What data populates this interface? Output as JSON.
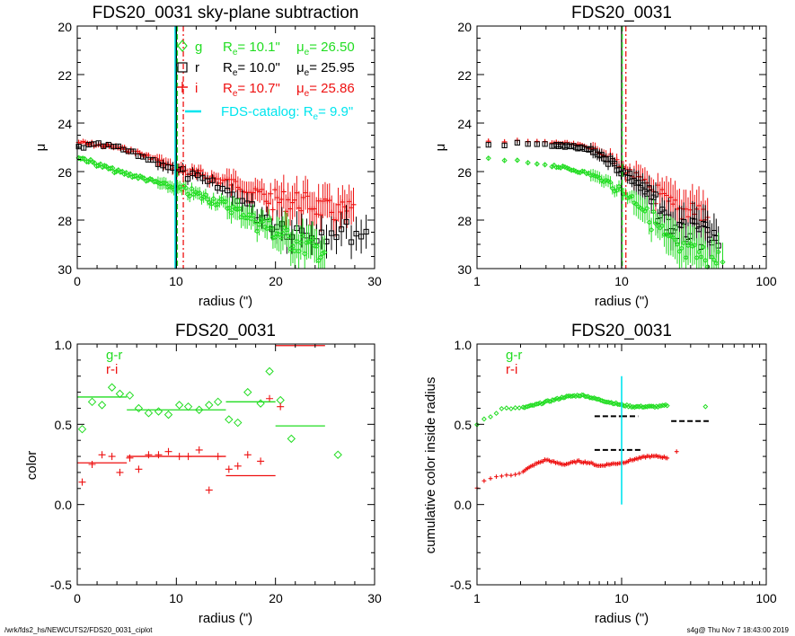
{
  "footer": {
    "left": "/wrk/fds2_hs/NEWCUTS2/FDS20_0031_ciplot",
    "right": "s4g@  Thu Nov  7 18:43:00 2019"
  },
  "colors": {
    "g": "#22dd22",
    "r": "#000000",
    "i": "#ee1111",
    "catalog": "#00e5ee"
  },
  "chart_data": [
    {
      "type": "scatter",
      "title": "FDS20_0031 sky-plane subtraction",
      "xlabel": "radius (\")",
      "ylabel": "μ",
      "xlim": [
        0,
        30
      ],
      "ylim": [
        30,
        20
      ],
      "xticks": [
        "0",
        "10",
        "20",
        "30"
      ],
      "yticks": [
        "20",
        "22",
        "24",
        "26",
        "28",
        "30"
      ],
      "legend": [
        {
          "band": "g",
          "re": "R",
          "re_sub": "e",
          "re_val": "= 10.1\"",
          "mu": "μ",
          "mu_sub": "e",
          "mu_val": "= 26.50"
        },
        {
          "band": "r",
          "re": "R",
          "re_sub": "e",
          "re_val": "= 10.0\"",
          "mu": "μ",
          "mu_sub": "e",
          "mu_val": "= 25.95"
        },
        {
          "band": "i",
          "re": "R",
          "re_sub": "e",
          "re_val": "= 10.7\"",
          "mu": "μ",
          "mu_sub": "e",
          "mu_val": "= 25.86"
        }
      ],
      "catalog_legend": {
        "pre": "FDS-catalog: R",
        "sub": "e",
        "post": "=   9.9\""
      },
      "vlines": {
        "g": 10.1,
        "r": 10.0,
        "i": 10.7,
        "catalog": 9.9
      },
      "profiles": {
        "g": {
          "x": [
            0.2,
            2,
            4,
            6,
            8,
            10,
            12,
            14,
            16,
            18,
            20,
            22,
            24,
            25
          ],
          "y": [
            25.4,
            25.7,
            26.0,
            26.2,
            26.45,
            26.7,
            26.95,
            27.2,
            27.6,
            28.0,
            28.5,
            28.9,
            29.2,
            29.3
          ]
        },
        "r": {
          "x": [
            0.2,
            2,
            4,
            6,
            8,
            10,
            12,
            14,
            16,
            18,
            20,
            22,
            24,
            26,
            28,
            29.5
          ],
          "y": [
            25.0,
            24.9,
            25.0,
            25.3,
            25.6,
            25.95,
            26.3,
            26.6,
            27.0,
            27.6,
            28.1,
            28.4,
            28.5,
            28.4,
            28.5,
            28.6
          ]
        },
        "i": {
          "x": [
            0.2,
            2,
            4,
            6,
            8,
            10,
            12,
            14,
            16,
            18,
            20,
            22,
            24,
            26,
            28
          ],
          "y": [
            24.8,
            24.9,
            25.0,
            25.2,
            25.5,
            25.9,
            26.1,
            26.3,
            26.5,
            26.9,
            27.2,
            27.2,
            27.4,
            27.7,
            27.6
          ]
        }
      }
    },
    {
      "type": "scatter",
      "title": "FDS20_0031",
      "xlabel": "radius (\")",
      "ylabel": "μ",
      "xscale": "log",
      "xlim": [
        1,
        100
      ],
      "ylim": [
        30,
        20
      ],
      "xticks": [
        "1",
        "10",
        "100"
      ],
      "yticks": [
        "20",
        "22",
        "24",
        "26",
        "28",
        "30"
      ],
      "vlines": {
        "g": 10.1,
        "r": 10.0,
        "i": 10.7
      },
      "profiles": {
        "g": {
          "x": [
            1.2,
            2,
            3,
            4,
            6,
            8,
            10,
            13,
            16,
            20,
            25,
            30,
            40,
            50
          ],
          "y": [
            25.5,
            25.6,
            25.7,
            25.85,
            26.1,
            26.45,
            26.8,
            27.3,
            27.9,
            28.8,
            29.3,
            29.4,
            29.6,
            29.7
          ]
        },
        "r": {
          "x": [
            1.2,
            2,
            3,
            4,
            6,
            8,
            10,
            13,
            16,
            20,
            25,
            30,
            40,
            47
          ],
          "y": [
            24.9,
            24.85,
            24.9,
            24.95,
            25.1,
            25.5,
            25.95,
            26.5,
            27.2,
            28.0,
            28.6,
            28.5,
            28.7,
            29.1
          ]
        },
        "i": {
          "x": [
            1.2,
            2,
            3,
            4,
            6,
            8,
            10,
            13,
            16,
            20,
            25,
            30,
            40
          ],
          "y": [
            24.8,
            24.75,
            24.8,
            24.85,
            25.0,
            25.4,
            25.85,
            26.3,
            26.7,
            27.3,
            27.7,
            27.4,
            28.0
          ]
        }
      }
    },
    {
      "type": "scatter",
      "title": "FDS20_0031",
      "xlabel": "radius (\")",
      "ylabel": "color",
      "xlim": [
        0,
        30
      ],
      "ylim": [
        -0.5,
        1.0
      ],
      "xticks": [
        "0",
        "10",
        "20",
        "30"
      ],
      "yticks": [
        "-0.5",
        "0.0",
        "0.5",
        "1.0"
      ],
      "legend": [
        "g-r",
        "r-i"
      ],
      "g_r_points": {
        "x": [
          0.5,
          1.5,
          2.5,
          3.5,
          4.3,
          5.3,
          6.2,
          7.2,
          8.2,
          9.2,
          10.3,
          11.2,
          12.3,
          13.3,
          14.2,
          15.3,
          16.2,
          17.2,
          18.5,
          19.4,
          20.5,
          21.6,
          26.3
        ],
        "y": [
          0.47,
          0.64,
          0.62,
          0.73,
          0.69,
          0.68,
          0.6,
          0.57,
          0.58,
          0.56,
          0.62,
          0.61,
          0.59,
          0.62,
          0.64,
          0.53,
          0.51,
          0.7,
          0.63,
          0.83,
          0.65,
          0.41,
          0.31
        ]
      },
      "r_i_points": {
        "x": [
          0.5,
          1.5,
          2.5,
          3.5,
          4.3,
          5.3,
          6.2,
          7.2,
          8.2,
          9.2,
          10.3,
          11.2,
          12.3,
          13.3,
          14.2,
          15.3,
          16.2,
          17.2,
          18.5,
          19.4,
          20.5
        ],
        "y": [
          0.14,
          0.25,
          0.31,
          0.3,
          0.2,
          0.29,
          0.22,
          0.31,
          0.31,
          0.33,
          0.3,
          0.3,
          0.34,
          0.09,
          0.3,
          0.22,
          0.24,
          0.31,
          0.27,
          0.66,
          0.61
        ]
      },
      "g_r_segments": [
        {
          "x": [
            0,
            5
          ],
          "y": 0.67
        },
        {
          "x": [
            5,
            15
          ],
          "y": 0.59
        },
        {
          "x": [
            15,
            20
          ],
          "y": 0.64
        },
        {
          "x": [
            20,
            25
          ],
          "y": 0.49
        }
      ],
      "r_i_segments": [
        {
          "x": [
            0,
            5
          ],
          "y": 0.26
        },
        {
          "x": [
            5,
            15
          ],
          "y": 0.3
        },
        {
          "x": [
            15,
            20
          ],
          "y": 0.18
        },
        {
          "x": [
            20,
            25
          ],
          "y": 0.99
        }
      ]
    },
    {
      "type": "scatter",
      "title": "FDS20_0031",
      "xlabel": "radius (\")",
      "ylabel": "cumulative color inside radius",
      "xscale": "log",
      "xlim": [
        1,
        100
      ],
      "ylim": [
        -0.5,
        1.0
      ],
      "xticks": [
        "1",
        "10",
        "100"
      ],
      "yticks": [
        "-0.5",
        "0.0",
        "0.5",
        "1.0"
      ],
      "legend": [
        "g-r",
        "r-i"
      ],
      "g_r": {
        "x": [
          1.0,
          1.1,
          1.3,
          1.5,
          1.7,
          2.0,
          2.5,
          3,
          4,
          5,
          5.5,
          6.5,
          8,
          10,
          12,
          15,
          18,
          21,
          38
        ],
        "y": [
          0.5,
          0.53,
          0.56,
          0.6,
          0.6,
          0.6,
          0.62,
          0.64,
          0.67,
          0.68,
          0.68,
          0.66,
          0.64,
          0.62,
          0.61,
          0.61,
          0.61,
          0.62,
          0.61
        ]
      },
      "r_i": {
        "x": [
          1.0,
          1.1,
          1.3,
          1.5,
          1.7,
          2.0,
          2.5,
          3,
          3.5,
          4,
          5,
          6,
          7,
          8,
          10,
          12,
          15,
          18,
          21,
          24
        ],
        "y": [
          0.1,
          0.15,
          0.17,
          0.18,
          0.18,
          0.2,
          0.25,
          0.28,
          0.26,
          0.25,
          0.27,
          0.26,
          0.24,
          0.25,
          0.26,
          0.28,
          0.3,
          0.3,
          0.29,
          0.33
        ]
      },
      "g_r_segments": [
        {
          "x": [
            6.5,
            10
          ],
          "y": 0.55
        },
        {
          "x": [
            10,
            13
          ],
          "y": 0.55
        },
        {
          "x": [
            22,
            40
          ],
          "y": 0.52
        }
      ],
      "r_i_segments": [
        {
          "x": [
            6.5,
            14
          ],
          "y": 0.34
        }
      ],
      "cyan_line": {
        "x": 10,
        "y": [
          0.0,
          0.8
        ]
      }
    }
  ]
}
